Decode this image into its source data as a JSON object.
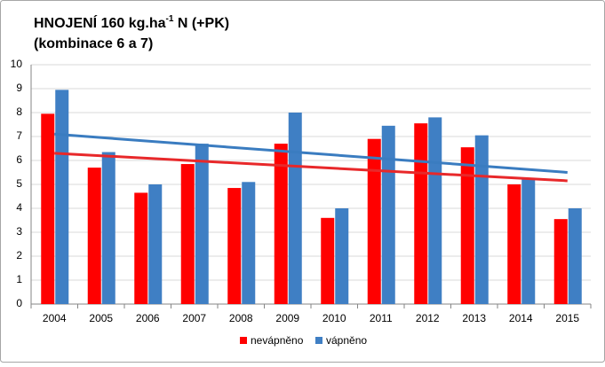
{
  "chart_data": {
    "type": "bar",
    "title": {
      "main": "HNOJENÍ 160 kg.ha",
      "superscript": "-1",
      "rest": " N (+PK)"
    },
    "subtitle": "(kombinace 6 a 7)",
    "categories": [
      "2004",
      "2005",
      "2006",
      "2007",
      "2008",
      "2009",
      "2010",
      "2011",
      "2012",
      "2013",
      "2014",
      "2015"
    ],
    "series": [
      {
        "name": "nevápněno",
        "color": "#ff0000",
        "trend_color": "#e8282a",
        "values": [
          7.95,
          5.7,
          4.65,
          5.85,
          4.85,
          6.7,
          3.6,
          6.9,
          7.55,
          6.55,
          5.0,
          3.55
        ],
        "trend": [
          6.3,
          5.15
        ]
      },
      {
        "name": "vápněno",
        "color": "#3f7fc4",
        "trend_color": "#3a7cc0",
        "values": [
          8.95,
          6.35,
          5.0,
          6.7,
          5.1,
          8.0,
          4.0,
          7.45,
          7.8,
          7.05,
          5.25,
          4.0
        ],
        "trend": [
          7.1,
          5.5
        ]
      }
    ],
    "ylim": [
      0,
      10
    ],
    "yticks": [
      0,
      1,
      2,
      3,
      4,
      5,
      6,
      7,
      8,
      9,
      10
    ],
    "grid": true,
    "legend": "bottom"
  }
}
